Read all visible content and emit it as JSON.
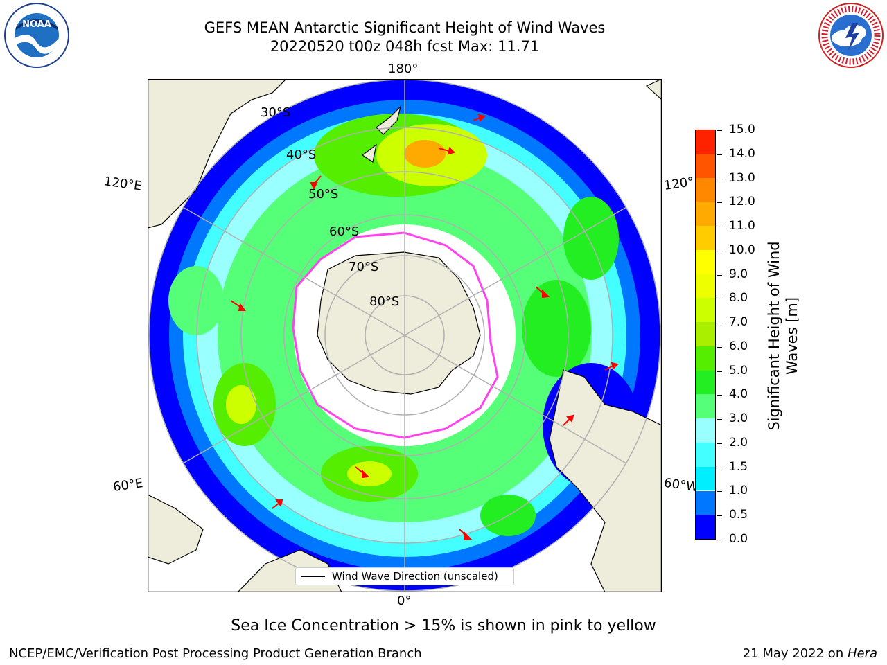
{
  "header": {
    "title_line1": "GEFS MEAN Antarctic Significant Height of Wind Waves",
    "title_line2": "20220520 t00z 048h fcst   Max: 11.71"
  },
  "logos": {
    "left": {
      "icon": "noaa-logo",
      "text": "NOAA"
    },
    "right": {
      "icon": "nws-logo",
      "text": "NATIONAL WEATHER SERVICE"
    }
  },
  "map": {
    "projection": "south-polar-stereographic",
    "longitude_labels": [
      "180°",
      "120°E",
      "120°",
      "60°E",
      "60°W",
      "0°"
    ],
    "latitude_labels": [
      "30°S",
      "40°S",
      "50°S",
      "60°S",
      "70°S",
      "80°S"
    ],
    "legend_label": "Wind Wave Direction (unscaled)",
    "colors": {
      "land": "#eeecda",
      "arrows": "#ff0000",
      "grid": "#b0b0b0",
      "ice_edge": "#ff44ee"
    }
  },
  "colorbar": {
    "title": "Significant Height of Wind Waves [m]",
    "ticks": [
      "0.0",
      "0.5",
      "1.0",
      "1.5",
      "2.0",
      "3.0",
      "4.0",
      "5.0",
      "6.0",
      "7.0",
      "8.0",
      "9.0",
      "10.0",
      "11.0",
      "12.0",
      "13.0",
      "14.0",
      "15.0"
    ],
    "colors": [
      "#0000ff",
      "#0077ff",
      "#00eeff",
      "#44ffff",
      "#99ffff",
      "#55ff77",
      "#22ee22",
      "#55ee00",
      "#aaee00",
      "#ccff00",
      "#eeff00",
      "#ffff00",
      "#ffcc00",
      "#ffaa00",
      "#ff8800",
      "#ff5500",
      "#ff2200"
    ]
  },
  "footer": {
    "ice_note": "Sea Ice Concentration > 15% is shown in pink to yellow",
    "credit": "NCEP/EMC/Verification Post Processing Product Generation Branch",
    "date_prefix": "21 May 2022 on ",
    "date_host": "Hera"
  }
}
